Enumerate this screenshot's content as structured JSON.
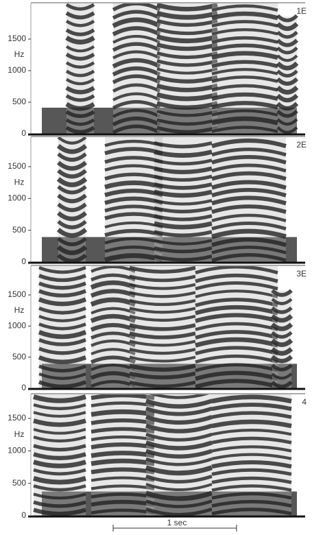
{
  "panels": [
    {
      "label": "1E",
      "unit": "Hz",
      "ticks": [
        "0",
        "500",
        "1000",
        "1500"
      ]
    },
    {
      "label": "2E",
      "unit": "Hz",
      "ticks": [
        "0",
        "500",
        "1000",
        "1500"
      ]
    },
    {
      "label": "3E",
      "unit": "Hz",
      "ticks": [
        "0",
        "500",
        "1000",
        "1500"
      ]
    },
    {
      "label": "4",
      "unit": "Hz",
      "ticks": [
        "0",
        "500",
        "1000",
        "1500"
      ]
    }
  ],
  "scale": {
    "label": "1 sec"
  }
}
